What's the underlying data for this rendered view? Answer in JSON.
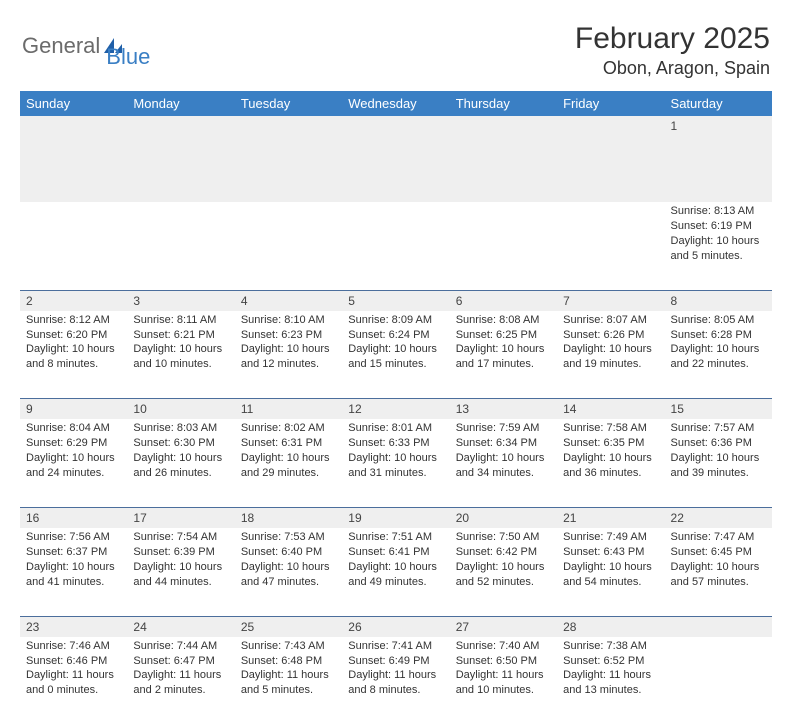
{
  "logo": {
    "text1": "General",
    "text2": "Blue"
  },
  "title": "February 2025",
  "location": "Obon, Aragon, Spain",
  "colors": {
    "header_bg": "#3a7fc4",
    "header_text": "#ffffff",
    "daynum_bg": "#efefef",
    "row_border": "#4b6e9c",
    "body_text": "#333333",
    "logo_gray": "#6b6b6b",
    "logo_blue": "#3a7fc4"
  },
  "weekdays": [
    "Sunday",
    "Monday",
    "Tuesday",
    "Wednesday",
    "Thursday",
    "Friday",
    "Saturday"
  ],
  "weeks": [
    [
      null,
      null,
      null,
      null,
      null,
      null,
      {
        "n": "1",
        "sunrise": "8:13 AM",
        "sunset": "6:19 PM",
        "daylight": "10 hours and 5 minutes."
      }
    ],
    [
      {
        "n": "2",
        "sunrise": "8:12 AM",
        "sunset": "6:20 PM",
        "daylight": "10 hours and 8 minutes."
      },
      {
        "n": "3",
        "sunrise": "8:11 AM",
        "sunset": "6:21 PM",
        "daylight": "10 hours and 10 minutes."
      },
      {
        "n": "4",
        "sunrise": "8:10 AM",
        "sunset": "6:23 PM",
        "daylight": "10 hours and 12 minutes."
      },
      {
        "n": "5",
        "sunrise": "8:09 AM",
        "sunset": "6:24 PM",
        "daylight": "10 hours and 15 minutes."
      },
      {
        "n": "6",
        "sunrise": "8:08 AM",
        "sunset": "6:25 PM",
        "daylight": "10 hours and 17 minutes."
      },
      {
        "n": "7",
        "sunrise": "8:07 AM",
        "sunset": "6:26 PM",
        "daylight": "10 hours and 19 minutes."
      },
      {
        "n": "8",
        "sunrise": "8:05 AM",
        "sunset": "6:28 PM",
        "daylight": "10 hours and 22 minutes."
      }
    ],
    [
      {
        "n": "9",
        "sunrise": "8:04 AM",
        "sunset": "6:29 PM",
        "daylight": "10 hours and 24 minutes."
      },
      {
        "n": "10",
        "sunrise": "8:03 AM",
        "sunset": "6:30 PM",
        "daylight": "10 hours and 26 minutes."
      },
      {
        "n": "11",
        "sunrise": "8:02 AM",
        "sunset": "6:31 PM",
        "daylight": "10 hours and 29 minutes."
      },
      {
        "n": "12",
        "sunrise": "8:01 AM",
        "sunset": "6:33 PM",
        "daylight": "10 hours and 31 minutes."
      },
      {
        "n": "13",
        "sunrise": "7:59 AM",
        "sunset": "6:34 PM",
        "daylight": "10 hours and 34 minutes."
      },
      {
        "n": "14",
        "sunrise": "7:58 AM",
        "sunset": "6:35 PM",
        "daylight": "10 hours and 36 minutes."
      },
      {
        "n": "15",
        "sunrise": "7:57 AM",
        "sunset": "6:36 PM",
        "daylight": "10 hours and 39 minutes."
      }
    ],
    [
      {
        "n": "16",
        "sunrise": "7:56 AM",
        "sunset": "6:37 PM",
        "daylight": "10 hours and 41 minutes."
      },
      {
        "n": "17",
        "sunrise": "7:54 AM",
        "sunset": "6:39 PM",
        "daylight": "10 hours and 44 minutes."
      },
      {
        "n": "18",
        "sunrise": "7:53 AM",
        "sunset": "6:40 PM",
        "daylight": "10 hours and 47 minutes."
      },
      {
        "n": "19",
        "sunrise": "7:51 AM",
        "sunset": "6:41 PM",
        "daylight": "10 hours and 49 minutes."
      },
      {
        "n": "20",
        "sunrise": "7:50 AM",
        "sunset": "6:42 PM",
        "daylight": "10 hours and 52 minutes."
      },
      {
        "n": "21",
        "sunrise": "7:49 AM",
        "sunset": "6:43 PM",
        "daylight": "10 hours and 54 minutes."
      },
      {
        "n": "22",
        "sunrise": "7:47 AM",
        "sunset": "6:45 PM",
        "daylight": "10 hours and 57 minutes."
      }
    ],
    [
      {
        "n": "23",
        "sunrise": "7:46 AM",
        "sunset": "6:46 PM",
        "daylight": "11 hours and 0 minutes."
      },
      {
        "n": "24",
        "sunrise": "7:44 AM",
        "sunset": "6:47 PM",
        "daylight": "11 hours and 2 minutes."
      },
      {
        "n": "25",
        "sunrise": "7:43 AM",
        "sunset": "6:48 PM",
        "daylight": "11 hours and 5 minutes."
      },
      {
        "n": "26",
        "sunrise": "7:41 AM",
        "sunset": "6:49 PM",
        "daylight": "11 hours and 8 minutes."
      },
      {
        "n": "27",
        "sunrise": "7:40 AM",
        "sunset": "6:50 PM",
        "daylight": "11 hours and 10 minutes."
      },
      {
        "n": "28",
        "sunrise": "7:38 AM",
        "sunset": "6:52 PM",
        "daylight": "11 hours and 13 minutes."
      },
      null
    ]
  ],
  "labels": {
    "sunrise": "Sunrise:",
    "sunset": "Sunset:",
    "daylight": "Daylight:"
  }
}
